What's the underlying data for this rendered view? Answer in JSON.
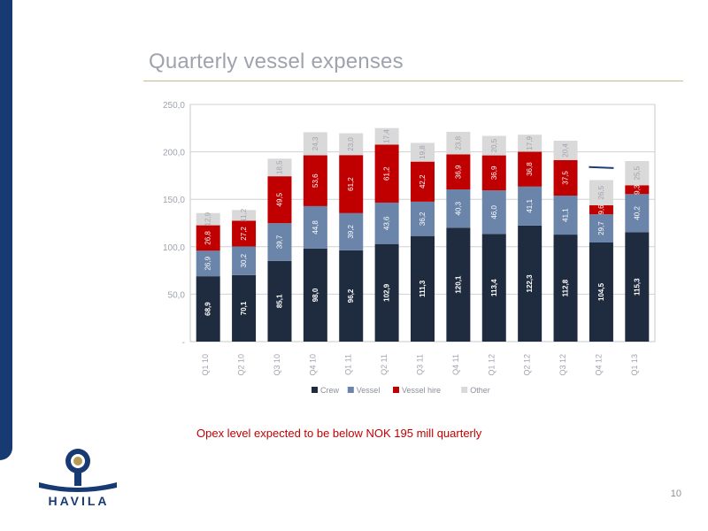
{
  "header": {
    "title": "Quarterly vessel expenses"
  },
  "note": "Opex level expected to be below NOK 195 mill quarterly",
  "page_number": "10",
  "brand": {
    "name": "HAVILA"
  },
  "colors": {
    "crew": "#1f2c3f",
    "vessel": "#6a84aa",
    "vessel_hire": "#c00000",
    "other": "#d9d9d9",
    "brand": "#173a73",
    "note": "#c00000",
    "logo_accent": "#b79b55"
  },
  "chart_data": {
    "type": "bar",
    "stacked": true,
    "categories": [
      "Q1 10",
      "Q2 10",
      "Q3 10",
      "Q4 10",
      "Q1 11",
      "Q2 11",
      "Q3 11",
      "Q4 11",
      "Q1 12",
      "Q2 12",
      "Q3 12",
      "Q4 12",
      "Q1 13"
    ],
    "series": [
      {
        "name": "Crew",
        "values": [
          68.9,
          70.1,
          85.1,
          98.0,
          96.2,
          102.9,
          111.3,
          120.1,
          113.4,
          122.3,
          112.8,
          104.5,
          115.3
        ],
        "labels": [
          "68,9",
          "70,1",
          "85,1",
          "98,0",
          "96,2",
          "102,9",
          "111,3",
          "120,1",
          "113,4",
          "122,3",
          "112,8",
          "104,5",
          "115,3"
        ]
      },
      {
        "name": "Vessel",
        "values": [
          26.9,
          30.2,
          39.7,
          44.8,
          39.2,
          43.6,
          36.2,
          40.3,
          46.0,
          41.1,
          41.1,
          29.7,
          40.2
        ],
        "labels": [
          "26,9",
          "30,2",
          "39,7",
          "44,8",
          "39,2",
          "43,6",
          "36,2",
          "40,3",
          "46,0",
          "41,1",
          "41,1",
          "29,7",
          "40,2"
        ]
      },
      {
        "name": "Vessel hire",
        "values": [
          26.8,
          27.2,
          49.5,
          53.6,
          61.2,
          61.2,
          42.2,
          36.9,
          36.9,
          36.8,
          37.5,
          9.6,
          9.3
        ],
        "labels": [
          "26,8",
          "27,2",
          "49,5",
          "53,6",
          "61,2",
          "61,2",
          "42,2",
          "36,9",
          "36,9",
          "36,8",
          "37,5",
          "9,6",
          "9,3"
        ]
      },
      {
        "name": "Other",
        "values": [
          12.9,
          11.2,
          18.5,
          24.3,
          23.0,
          17.4,
          19.8,
          23.8,
          20.5,
          17.9,
          20.4,
          26.5,
          25.5
        ],
        "labels": [
          "12,9",
          "11,2",
          "18,5",
          "24,3",
          "23,0",
          "17,4",
          "19,8",
          "23,8",
          "20,5",
          "17,9",
          "20,4",
          "26,5",
          "25,5"
        ]
      }
    ],
    "ylim": [
      0,
      250
    ],
    "yticks": [
      0,
      50,
      100,
      150,
      200,
      250
    ],
    "ytick_labels": [
      "-",
      "50,0",
      "100,0",
      "150,0",
      "200,0",
      "250,0"
    ],
    "grid": true,
    "legend_position": "bottom",
    "xlabel": "",
    "ylabel": ""
  }
}
